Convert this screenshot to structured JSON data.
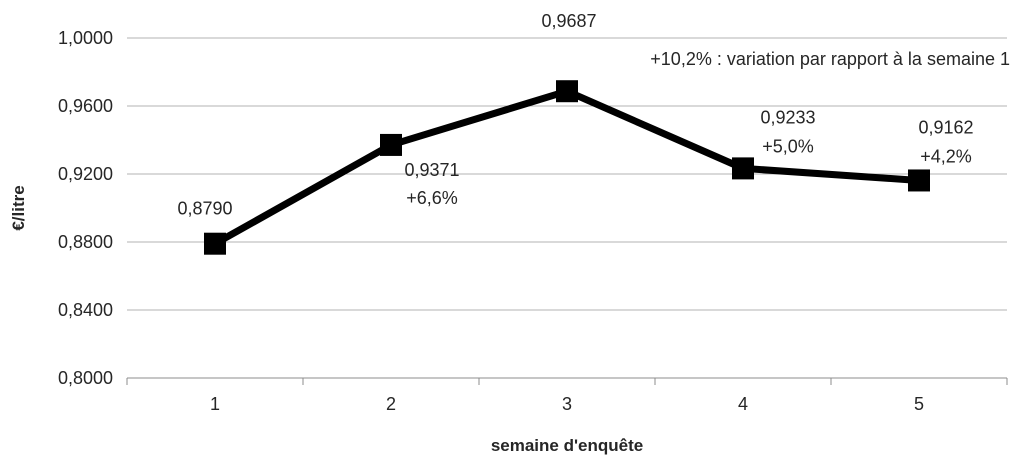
{
  "chart_data": {
    "type": "line",
    "x": [
      "1",
      "2",
      "3",
      "4",
      "5"
    ],
    "series": [
      {
        "values": [
          0.879,
          0.9371,
          0.9687,
          0.9233,
          0.9162
        ],
        "value_labels": [
          "0,8790",
          "0,9371",
          "0,9687",
          "0,9233",
          "0,9162"
        ],
        "variation_labels": [
          "",
          "+6,6%",
          "+10,2% : variation par rapport à la semaine 1",
          "+5,0%",
          "+4,2%"
        ]
      }
    ],
    "xlabel": "semaine d'enquête",
    "ylabel": "€/litre",
    "ylim": [
      0.8,
      1.0
    ],
    "y_ticks": [
      1.0,
      0.96,
      0.92,
      0.88,
      0.84,
      0.8
    ],
    "y_tick_labels": [
      "1,0000",
      "0,9600",
      "0,9200",
      "0,8800",
      "0,8400",
      "0,8000"
    ],
    "grid": "horizontal",
    "colors": {
      "line": "#000000",
      "grid": "#b3b3b3"
    }
  }
}
